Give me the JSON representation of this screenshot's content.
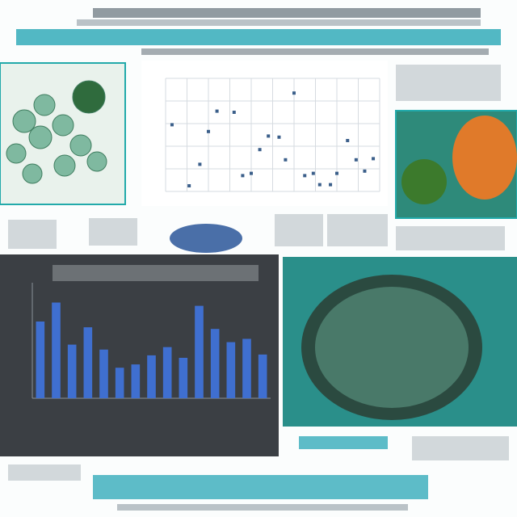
{
  "chart_data": [
    {
      "type": "scatter",
      "color": "#3b5f8a",
      "x": [
        3,
        11,
        16,
        20,
        24,
        32,
        36,
        40,
        44,
        48,
        53,
        56,
        60,
        65,
        69,
        72,
        77,
        80,
        85,
        89,
        93,
        97
      ],
      "values": [
        59,
        5,
        24,
        53,
        71,
        70,
        14,
        16,
        37,
        49,
        48,
        28,
        87,
        14,
        16,
        6,
        6,
        16,
        45,
        28,
        18,
        29
      ],
      "xlim": [
        0,
        100
      ],
      "ylim": [
        0,
        100
      ],
      "xticks": [
        0,
        10,
        20,
        30,
        40,
        50,
        60,
        70,
        80,
        90,
        100
      ],
      "yticks": [
        0,
        20,
        40,
        60,
        80,
        100
      ],
      "grid": true
    },
    {
      "type": "bar",
      "color": "#3f6fd0",
      "categories": [
        null,
        null,
        null,
        null,
        null,
        null,
        null,
        null,
        null,
        null,
        null,
        null,
        null,
        null,
        null
      ],
      "values": [
        93,
        116,
        65,
        86,
        59,
        37,
        41,
        52,
        62,
        49,
        112,
        84,
        68,
        72,
        53
      ],
      "ylim": [
        0,
        140
      ]
    }
  ]
}
